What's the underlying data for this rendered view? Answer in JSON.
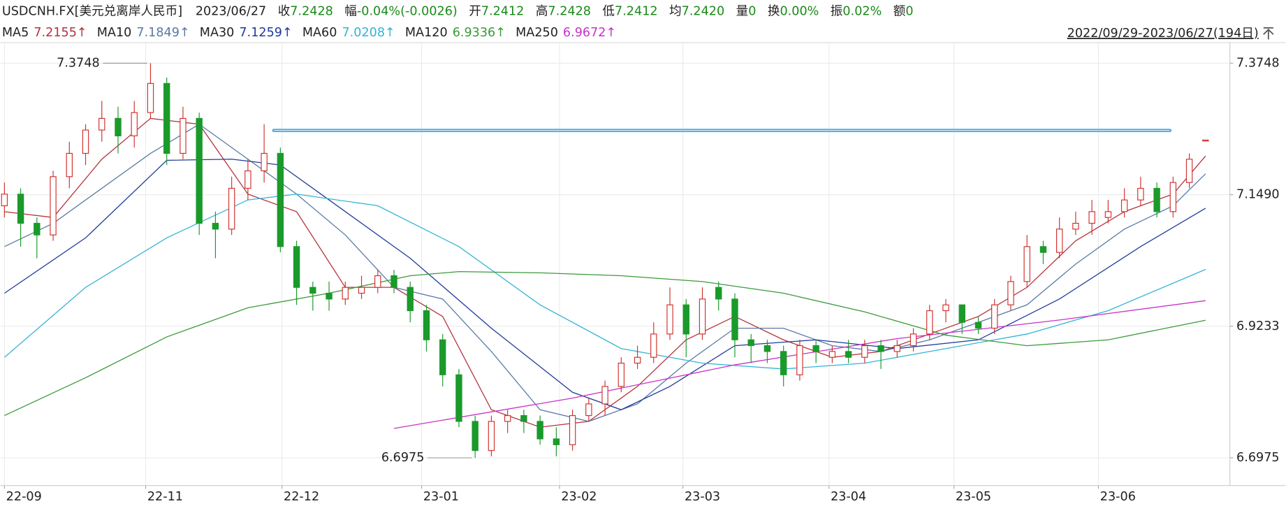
{
  "header": {
    "symbol": "USDCNH.FX[美元兑离岸人民币]",
    "date": "2023/06/27",
    "stats": [
      {
        "label": "收",
        "value": "7.2428"
      },
      {
        "label": "幅",
        "value": "-0.04%(-0.0026)"
      },
      {
        "label": "开",
        "value": "7.2412"
      },
      {
        "label": "高",
        "value": "7.2428"
      },
      {
        "label": "低",
        "value": "7.2412"
      },
      {
        "label": "均",
        "value": "7.2420"
      },
      {
        "label": "量",
        "value": "0"
      },
      {
        "label": "换",
        "value": "0.00%"
      },
      {
        "label": "振",
        "value": "0.02%"
      },
      {
        "label": "额",
        "value": "0"
      }
    ],
    "range": "2022/09/29-2023/06/27(194日)"
  },
  "chart_data": {
    "type": "candlestick",
    "up_color": "#d0322e",
    "down_color": "#1a9a2a",
    "ohlc": [
      [
        7.13,
        7.17,
        7.11,
        7.15
      ],
      [
        7.15,
        7.16,
        7.06,
        7.1
      ],
      [
        7.1,
        7.11,
        7.04,
        7.08
      ],
      [
        7.08,
        7.19,
        7.07,
        7.18
      ],
      [
        7.18,
        7.24,
        7.16,
        7.22
      ],
      [
        7.22,
        7.27,
        7.2,
        7.26
      ],
      [
        7.26,
        7.31,
        7.24,
        7.28
      ],
      [
        7.28,
        7.3,
        7.22,
        7.25
      ],
      [
        7.25,
        7.31,
        7.23,
        7.29
      ],
      [
        7.29,
        7.3748,
        7.28,
        7.34
      ],
      [
        7.34,
        7.35,
        7.2,
        7.22
      ],
      [
        7.22,
        7.3,
        7.21,
        7.28
      ],
      [
        7.28,
        7.29,
        7.08,
        7.1
      ],
      [
        7.1,
        7.12,
        7.04,
        7.09
      ],
      [
        7.09,
        7.18,
        7.08,
        7.16
      ],
      [
        7.16,
        7.21,
        7.14,
        7.19
      ],
      [
        7.19,
        7.27,
        7.17,
        7.22
      ],
      [
        7.22,
        7.23,
        7.05,
        7.06
      ],
      [
        7.06,
        7.07,
        6.96,
        6.99
      ],
      [
        6.99,
        7.0,
        6.95,
        6.98
      ],
      [
        6.98,
        7.0,
        6.95,
        6.97
      ],
      [
        6.97,
        7.0,
        6.96,
        6.99
      ],
      [
        6.98,
        7.01,
        6.97,
        6.99
      ],
      [
        6.99,
        7.02,
        6.98,
        7.01
      ],
      [
        7.01,
        7.02,
        6.98,
        6.99
      ],
      [
        6.99,
        7.0,
        6.93,
        6.95
      ],
      [
        6.95,
        6.96,
        6.88,
        6.9
      ],
      [
        6.9,
        6.91,
        6.82,
        6.84
      ],
      [
        6.84,
        6.85,
        6.75,
        6.76
      ],
      [
        6.76,
        6.77,
        6.6975,
        6.71
      ],
      [
        6.71,
        6.77,
        6.7,
        6.76
      ],
      [
        6.76,
        6.78,
        6.74,
        6.77
      ],
      [
        6.77,
        6.78,
        6.74,
        6.76
      ],
      [
        6.76,
        6.77,
        6.72,
        6.73
      ],
      [
        6.73,
        6.75,
        6.7,
        6.72
      ],
      [
        6.72,
        6.78,
        6.71,
        6.77
      ],
      [
        6.77,
        6.8,
        6.76,
        6.79
      ],
      [
        6.79,
        6.83,
        6.77,
        6.82
      ],
      [
        6.82,
        6.87,
        6.81,
        6.86
      ],
      [
        6.86,
        6.89,
        6.85,
        6.87
      ],
      [
        6.87,
        6.93,
        6.86,
        6.91
      ],
      [
        6.91,
        6.99,
        6.9,
        6.96
      ],
      [
        6.96,
        6.97,
        6.87,
        6.91
      ],
      [
        6.91,
        6.99,
        6.9,
        6.97
      ],
      [
        6.99,
        7.0,
        6.95,
        6.97
      ],
      [
        6.97,
        6.98,
        6.87,
        6.9
      ],
      [
        6.9,
        6.91,
        6.86,
        6.89
      ],
      [
        6.89,
        6.9,
        6.86,
        6.88
      ],
      [
        6.88,
        6.89,
        6.82,
        6.84
      ],
      [
        6.84,
        6.9,
        6.83,
        6.89
      ],
      [
        6.89,
        6.9,
        6.86,
        6.88
      ],
      [
        6.87,
        6.89,
        6.86,
        6.88
      ],
      [
        6.88,
        6.9,
        6.86,
        6.87
      ],
      [
        6.87,
        6.9,
        6.86,
        6.89
      ],
      [
        6.89,
        6.9,
        6.85,
        6.88
      ],
      [
        6.88,
        6.9,
        6.87,
        6.89
      ],
      [
        6.89,
        6.92,
        6.88,
        6.91
      ],
      [
        6.91,
        6.96,
        6.9,
        6.95
      ],
      [
        6.95,
        6.97,
        6.93,
        6.96
      ],
      [
        6.96,
        6.96,
        6.91,
        6.93
      ],
      [
        6.93,
        6.94,
        6.91,
        6.92
      ],
      [
        6.92,
        6.97,
        6.91,
        6.96
      ],
      [
        6.96,
        7.01,
        6.95,
        7.0
      ],
      [
        7.0,
        7.08,
        6.99,
        7.06
      ],
      [
        7.06,
        7.07,
        7.03,
        7.05
      ],
      [
        7.05,
        7.11,
        7.04,
        7.09
      ],
      [
        7.09,
        7.12,
        7.08,
        7.1
      ],
      [
        7.1,
        7.14,
        7.08,
        7.12
      ],
      [
        7.11,
        7.14,
        7.1,
        7.12
      ],
      [
        7.12,
        7.16,
        7.11,
        7.14
      ],
      [
        7.14,
        7.18,
        7.13,
        7.16
      ],
      [
        7.16,
        7.17,
        7.11,
        7.12
      ],
      [
        7.12,
        7.18,
        7.11,
        7.17
      ],
      [
        7.17,
        7.22,
        7.16,
        7.21
      ],
      [
        7.2412,
        7.2428,
        7.2412,
        7.2428
      ]
    ],
    "series": [
      {
        "name": "MA5",
        "color": "#b4333c",
        "value_label": "7.2155↑",
        "x": [
          0,
          3,
          6,
          9,
          12,
          15,
          18,
          21,
          24,
          27,
          30,
          33,
          36,
          39,
          42,
          45,
          48,
          51,
          54,
          57,
          60,
          63,
          66,
          69,
          72,
          74
        ],
        "values": [
          7.12,
          7.11,
          7.21,
          7.28,
          7.27,
          7.15,
          7.12,
          6.99,
          6.99,
          6.94,
          6.78,
          6.75,
          6.76,
          6.82,
          6.9,
          6.94,
          6.9,
          6.87,
          6.88,
          6.91,
          6.94,
          6.99,
          7.07,
          7.12,
          7.15,
          7.2155
        ]
      },
      {
        "name": "MA10",
        "color": "#5a7aa8",
        "value_label": "7.1849↑",
        "x": [
          0,
          3,
          6,
          9,
          12,
          15,
          18,
          21,
          24,
          27,
          30,
          33,
          36,
          39,
          42,
          45,
          48,
          51,
          54,
          57,
          60,
          63,
          66,
          69,
          72,
          74
        ],
        "values": [
          7.06,
          7.1,
          7.16,
          7.22,
          7.27,
          7.21,
          7.15,
          7.08,
          6.99,
          6.97,
          6.88,
          6.78,
          6.76,
          6.79,
          6.86,
          6.92,
          6.92,
          6.89,
          6.88,
          6.9,
          6.93,
          6.96,
          7.03,
          7.09,
          7.13,
          7.1849
        ]
      },
      {
        "name": "MA30",
        "color": "#1f3c99",
        "value_label": "7.1259↑",
        "x": [
          0,
          5,
          10,
          14,
          17,
          20,
          25,
          30,
          35,
          38,
          41,
          45,
          50,
          55,
          60,
          65,
          70,
          74
        ],
        "values": [
          6.98,
          7.075,
          7.208,
          7.21,
          7.2,
          7.14,
          7.04,
          6.92,
          6.81,
          6.78,
          6.82,
          6.89,
          6.9,
          6.885,
          6.9,
          6.97,
          7.06,
          7.1259
        ]
      },
      {
        "name": "MA60",
        "color": "#33b4d6",
        "value_label": "7.0208↑",
        "x": [
          0,
          5,
          10,
          15,
          18,
          23,
          28,
          33,
          38,
          43,
          48,
          53,
          58,
          63,
          68,
          74
        ],
        "values": [
          6.87,
          6.99,
          7.075,
          7.14,
          7.15,
          7.13,
          7.06,
          6.96,
          6.885,
          6.86,
          6.85,
          6.86,
          6.885,
          6.91,
          6.95,
          7.0208
        ]
      },
      {
        "name": "MA120",
        "color": "#3a9a3a",
        "value_label": "6.9336↑",
        "x": [
          0,
          5,
          10,
          15,
          20,
          25,
          28,
          33,
          38,
          43,
          48,
          53,
          58,
          63,
          68,
          74
        ],
        "values": [
          6.77,
          6.835,
          6.905,
          6.955,
          6.98,
          7.01,
          7.017,
          7.015,
          7.01,
          7.0,
          6.98,
          6.948,
          6.908,
          6.89,
          6.9,
          6.9336
        ]
      },
      {
        "name": "MA250",
        "color": "#c832c8",
        "value_label": "6.9672↑",
        "x": [
          24,
          35,
          45,
          55,
          65,
          74
        ],
        "values": [
          6.748,
          6.8,
          6.857,
          6.902,
          6.934,
          6.9672
        ]
      }
    ],
    "annotations": [
      {
        "text": "7.3748",
        "x": 9,
        "value": 7.3748,
        "color": "#b22222"
      },
      {
        "text": "6.6975",
        "x": 29,
        "value": 6.6975,
        "color": "#1a8a1a"
      }
    ],
    "hline": {
      "x": [
        16.6,
        71.8
      ],
      "value": 7.2593,
      "color": "#4aa3df"
    },
    "xlim": [
      -0.25,
      75.5
    ],
    "ylim": [
      6.65,
      7.41
    ],
    "xticks": [
      {
        "value": 0,
        "label": "22-09"
      },
      {
        "value": 8.7,
        "label": "22-11"
      },
      {
        "value": 17.1,
        "label": "22-12"
      },
      {
        "value": 25.7,
        "label": "23-01"
      },
      {
        "value": 34.2,
        "label": "23-02"
      },
      {
        "value": 41.8,
        "label": "23-03"
      },
      {
        "value": 50.8,
        "label": "23-04"
      },
      {
        "value": 58.5,
        "label": "23-05"
      },
      {
        "value": 67.4,
        "label": "23-06"
      }
    ],
    "yticks": [
      7.3748,
      {
        "value": 7.149,
        "label": "7.1490"
      },
      6.9233,
      6.6975
    ],
    "grid": true
  }
}
